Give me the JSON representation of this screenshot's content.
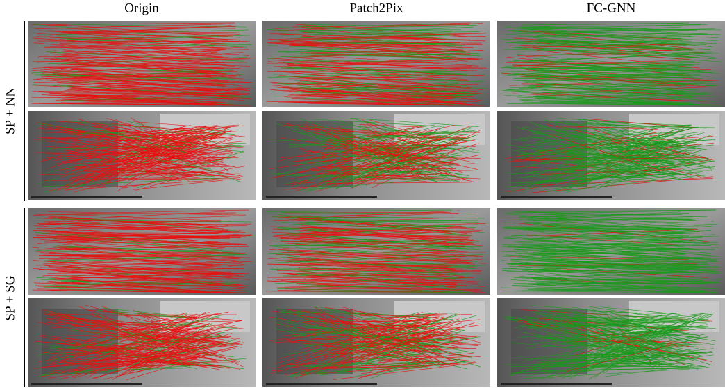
{
  "columns": [
    "Origin",
    "Patch2Pix",
    "FC-GNN"
  ],
  "rows": [
    "SP + NN",
    "SP + SG"
  ]
}
